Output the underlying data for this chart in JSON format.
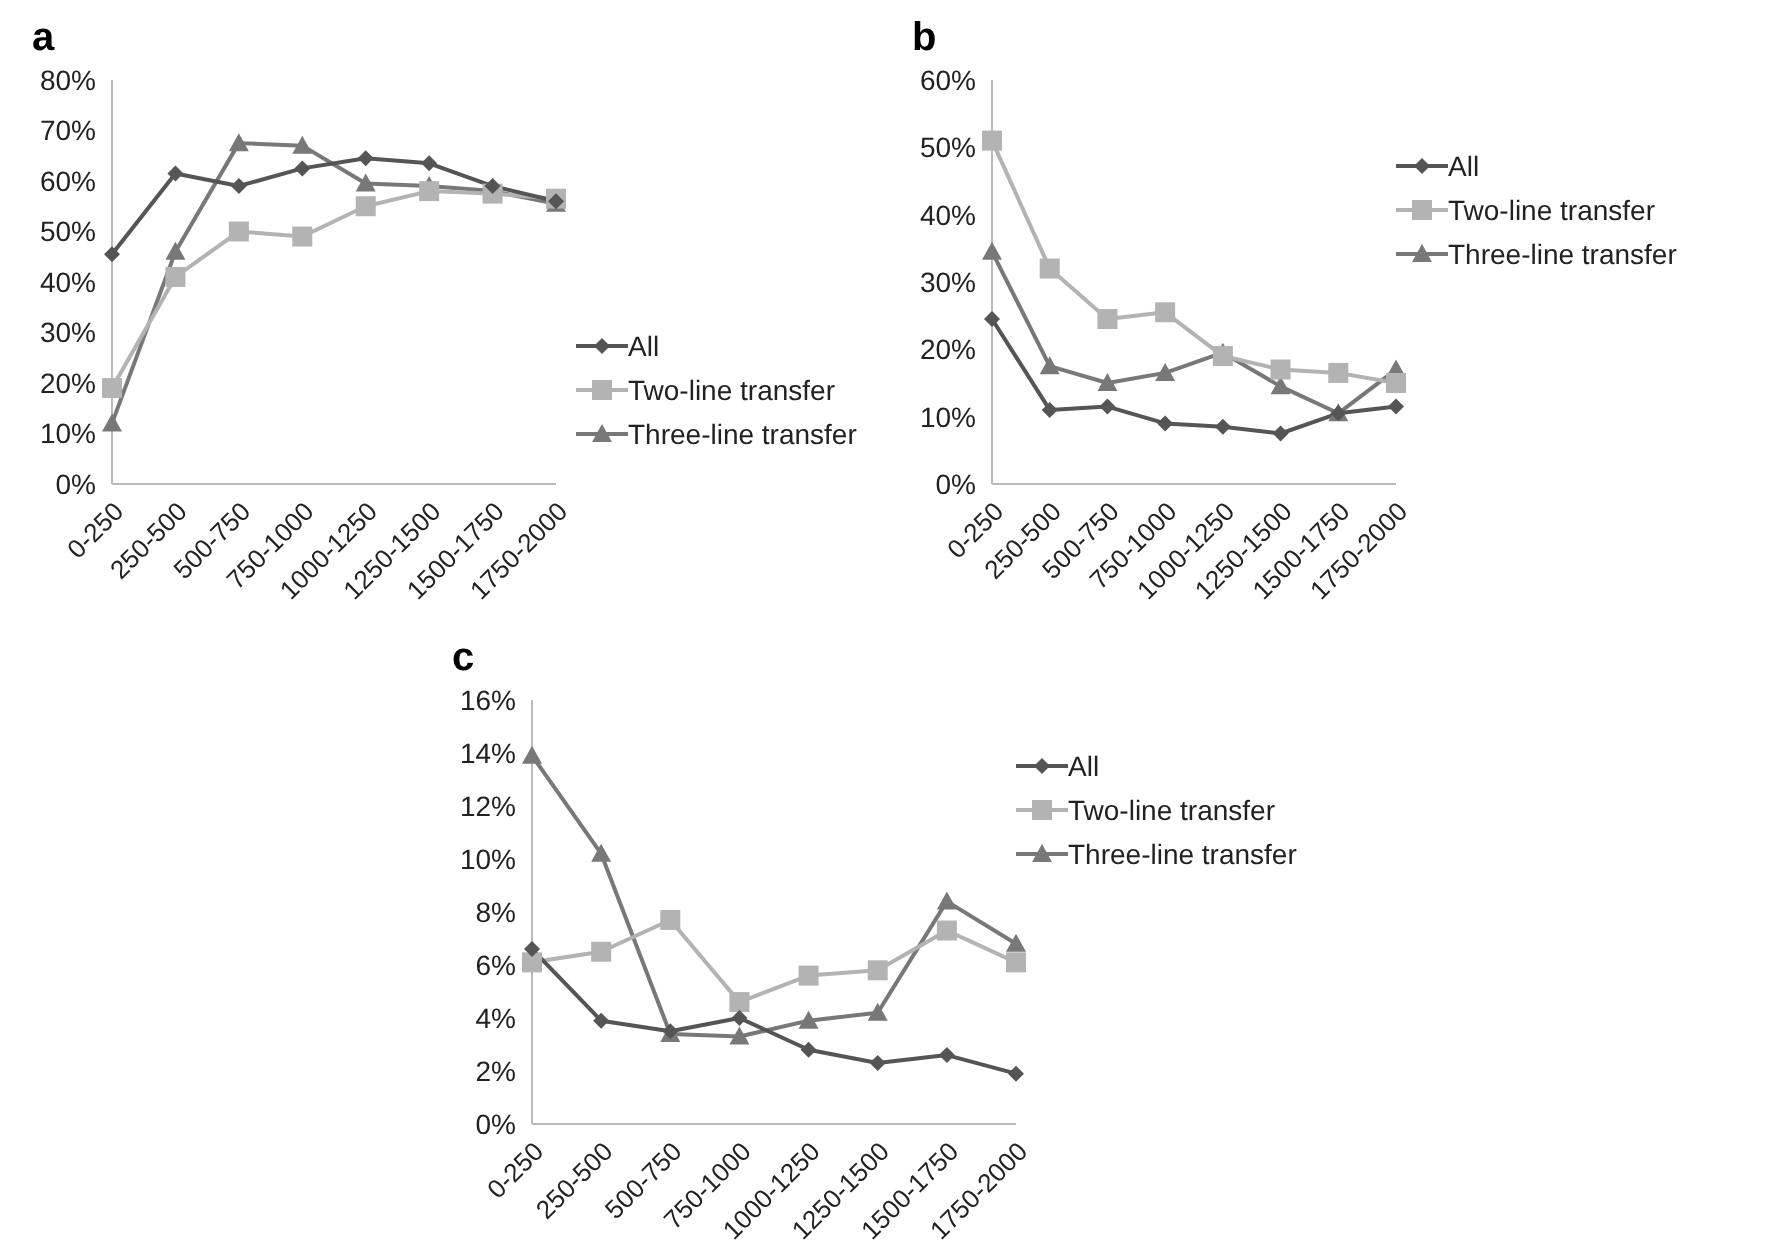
{
  "chart_data": [
    {
      "type": "line",
      "title": "a",
      "categories": [
        "0-250",
        "250-500",
        "500-750",
        "750-1000",
        "1000-1250",
        "1250-1500",
        "1500-1750",
        "1750-2000"
      ],
      "ylim": [
        0,
        80
      ],
      "yticks": [
        {
          "value": 0,
          "label": "0%"
        },
        {
          "value": 10,
          "label": "10%"
        },
        {
          "value": 20,
          "label": "20%"
        },
        {
          "value": 30,
          "label": "30%"
        },
        {
          "value": 40,
          "label": "40%"
        },
        {
          "value": 50,
          "label": "50%"
        },
        {
          "value": 60,
          "label": "60%"
        },
        {
          "value": 70,
          "label": "70%"
        },
        {
          "value": 80,
          "label": "80%"
        }
      ],
      "grid": false,
      "legend": "right",
      "series": [
        {
          "name": "All",
          "color": "#555555",
          "marker": "diamond",
          "values": [
            45.5,
            61.5,
            59,
            62.5,
            64.5,
            63.5,
            59,
            56
          ]
        },
        {
          "name": "Two-line transfer",
          "color": "#b3b3b3",
          "marker": "square",
          "values": [
            19,
            41,
            50,
            49,
            55,
            58,
            57.5,
            56.5
          ]
        },
        {
          "name": "Three-line transfer",
          "color": "#787878",
          "marker": "triangle",
          "values": [
            12,
            46,
            67.5,
            67,
            59.5,
            59,
            58,
            55.5
          ]
        }
      ]
    },
    {
      "type": "line",
      "title": "b",
      "categories": [
        "0-250",
        "250-500",
        "500-750",
        "750-1000",
        "1000-1250",
        "1250-1500",
        "1500-1750",
        "1750-2000"
      ],
      "ylim": [
        0,
        60
      ],
      "yticks": [
        {
          "value": 0,
          "label": "0%"
        },
        {
          "value": 10,
          "label": "10%"
        },
        {
          "value": 20,
          "label": "20%"
        },
        {
          "value": 30,
          "label": "30%"
        },
        {
          "value": 40,
          "label": "40%"
        },
        {
          "value": 50,
          "label": "50%"
        },
        {
          "value": 60,
          "label": "60%"
        }
      ],
      "grid": false,
      "legend": "top right",
      "series": [
        {
          "name": "All",
          "color": "#555555",
          "marker": "diamond",
          "values": [
            24.5,
            11,
            11.5,
            9,
            8.5,
            7.5,
            10.5,
            11.5
          ]
        },
        {
          "name": "Two-line transfer",
          "color": "#b3b3b3",
          "marker": "square",
          "values": [
            51,
            32,
            24.5,
            25.5,
            19,
            17,
            16.5,
            15
          ]
        },
        {
          "name": "Three-line transfer",
          "color": "#787878",
          "marker": "triangle",
          "values": [
            34.5,
            17.5,
            15,
            16.5,
            19.5,
            14.5,
            10.5,
            17
          ]
        }
      ]
    },
    {
      "type": "line",
      "title": "c",
      "categories": [
        "0-250",
        "250-500",
        "500-750",
        "750-1000",
        "1000-1250",
        "1250-1500",
        "1500-1750",
        "1750-2000"
      ],
      "ylim": [
        0,
        16
      ],
      "yticks": [
        {
          "value": 0,
          "label": "0%"
        },
        {
          "value": 2,
          "label": "2%"
        },
        {
          "value": 4,
          "label": "4%"
        },
        {
          "value": 6,
          "label": "6%"
        },
        {
          "value": 8,
          "label": "8%"
        },
        {
          "value": 10,
          "label": "10%"
        },
        {
          "value": 12,
          "label": "12%"
        },
        {
          "value": 14,
          "label": "14%"
        },
        {
          "value": 16,
          "label": "16%"
        }
      ],
      "grid": false,
      "legend": "top right",
      "series": [
        {
          "name": "All",
          "color": "#555555",
          "marker": "diamond",
          "values": [
            6.6,
            3.9,
            3.5,
            4.0,
            2.8,
            2.3,
            2.6,
            1.9
          ]
        },
        {
          "name": "Two-line transfer",
          "color": "#b3b3b3",
          "marker": "square",
          "values": [
            6.1,
            6.5,
            7.7,
            4.6,
            5.6,
            5.8,
            7.3,
            6.1
          ]
        },
        {
          "name": "Three-line transfer",
          "color": "#787878",
          "marker": "triangle",
          "values": [
            13.9,
            10.2,
            3.4,
            3.3,
            3.9,
            4.2,
            8.4,
            6.8
          ]
        }
      ]
    }
  ]
}
